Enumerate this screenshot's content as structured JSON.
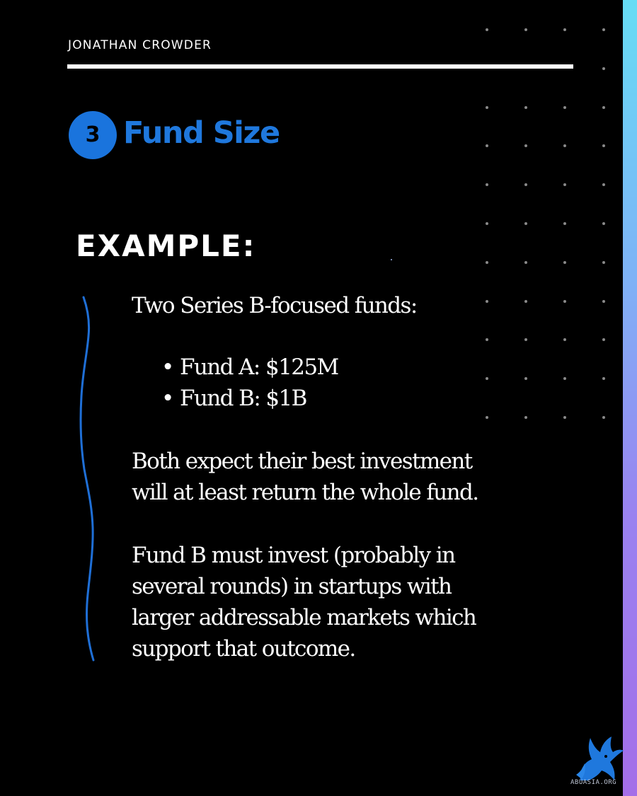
{
  "header": {
    "author": "JONATHAN CROWDER"
  },
  "section": {
    "number": "3",
    "title": "Fund Size"
  },
  "example": {
    "heading": "EXAMPLE:",
    "intro": "Two Series B-focused funds:",
    "bullets": [
      "Fund A: $125M",
      "Fund B: $1B"
    ],
    "paragraph1_lines": [
      "Both expect their best investment",
      "will at least return the whole fund."
    ],
    "paragraph2_lines": [
      "Fund B must invest (probably in",
      "several rounds) in startups with",
      "larger addressable markets which",
      "support that outcome."
    ]
  },
  "watermark": {
    "text": "ABUASIA.ORG"
  },
  "colors": {
    "background": "#000000",
    "accent_blue": "#1a74dd",
    "text": "#ffffff",
    "strip_top": "#66ddf5",
    "strip_bottom": "#a46ee8"
  },
  "icons": {
    "logo": "winged-griffin-icon"
  }
}
